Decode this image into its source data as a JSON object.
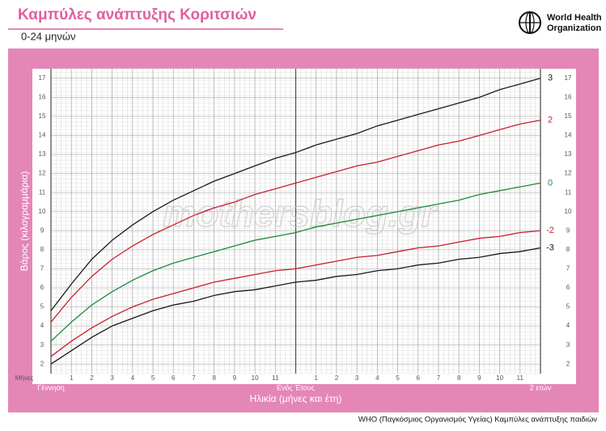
{
  "chart_data": {
    "type": "line",
    "title": "Καμπύλες ανάπτυξης Κοριτσιών",
    "subtitle": "0-24 μηνών",
    "logo_text": [
      "World Health",
      "Organization"
    ],
    "x_label": "Ηλικία (μήνες και έτη)",
    "x_unit_label": "Μήνες",
    "y_label": "Βάρος (κιλογραμμάρια)",
    "watermark": "mothersblog.gr",
    "source": "WHO (Παγκόσμιος Οργανισμός Υγείας) Καμπύλες ανάπτυξης παιδιών",
    "x": [
      0,
      1,
      2,
      3,
      4,
      5,
      6,
      7,
      8,
      9,
      10,
      11,
      12,
      13,
      14,
      15,
      16,
      17,
      18,
      19,
      20,
      21,
      22,
      23,
      24
    ],
    "xlim": [
      0,
      24
    ],
    "xticks": [
      {
        "value": 0,
        "label": "Γέννηση"
      },
      1,
      2,
      3,
      4,
      5,
      6,
      7,
      8,
      9,
      10,
      11,
      {
        "value": 12,
        "label": "Ενός Έτους"
      },
      {
        "value": 13,
        "label": "1"
      },
      {
        "value": 14,
        "label": "2"
      },
      {
        "value": 15,
        "label": "3"
      },
      {
        "value": 16,
        "label": "4"
      },
      {
        "value": 17,
        "label": "5"
      },
      {
        "value": 18,
        "label": "6"
      },
      {
        "value": 19,
        "label": "7"
      },
      {
        "value": 20,
        "label": "8"
      },
      {
        "value": 21,
        "label": "9"
      },
      {
        "value": 22,
        "label": "10"
      },
      {
        "value": 23,
        "label": "11"
      },
      {
        "value": 24,
        "label": "2 ετών"
      }
    ],
    "ylim": [
      1.5,
      17.5
    ],
    "yticks": [
      2,
      3,
      4,
      5,
      6,
      7,
      8,
      9,
      10,
      11,
      12,
      13,
      14,
      15,
      16,
      17
    ],
    "grid": true,
    "series": [
      {
        "name": "3",
        "color": "#1a1a1a",
        "values": [
          4.8,
          6.2,
          7.5,
          8.5,
          9.3,
          10.0,
          10.6,
          11.1,
          11.6,
          12.0,
          12.4,
          12.8,
          13.1,
          13.5,
          13.8,
          14.1,
          14.5,
          14.8,
          15.1,
          15.4,
          15.7,
          16.0,
          16.4,
          16.7,
          17.0
        ]
      },
      {
        "name": "2",
        "color": "#c8202e",
        "values": [
          4.2,
          5.5,
          6.6,
          7.5,
          8.2,
          8.8,
          9.3,
          9.8,
          10.2,
          10.5,
          10.9,
          11.2,
          11.5,
          11.8,
          12.1,
          12.4,
          12.6,
          12.9,
          13.2,
          13.5,
          13.7,
          14.0,
          14.3,
          14.6,
          14.8
        ]
      },
      {
        "name": "0",
        "color": "#1e8a3c",
        "values": [
          3.2,
          4.2,
          5.1,
          5.8,
          6.4,
          6.9,
          7.3,
          7.6,
          7.9,
          8.2,
          8.5,
          8.7,
          8.9,
          9.2,
          9.4,
          9.6,
          9.8,
          10.0,
          10.2,
          10.4,
          10.6,
          10.9,
          11.1,
          11.3,
          11.5
        ]
      },
      {
        "name": "-2",
        "color": "#c8202e",
        "values": [
          2.4,
          3.2,
          3.9,
          4.5,
          5.0,
          5.4,
          5.7,
          6.0,
          6.3,
          6.5,
          6.7,
          6.9,
          7.0,
          7.2,
          7.4,
          7.6,
          7.7,
          7.9,
          8.1,
          8.2,
          8.4,
          8.6,
          8.7,
          8.9,
          9.0
        ]
      },
      {
        "name": "-3",
        "color": "#1a1a1a",
        "values": [
          2.0,
          2.7,
          3.4,
          4.0,
          4.4,
          4.8,
          5.1,
          5.3,
          5.6,
          5.8,
          5.9,
          6.1,
          6.3,
          6.4,
          6.6,
          6.7,
          6.9,
          7.0,
          7.2,
          7.3,
          7.5,
          7.6,
          7.8,
          7.9,
          8.1
        ]
      }
    ]
  }
}
